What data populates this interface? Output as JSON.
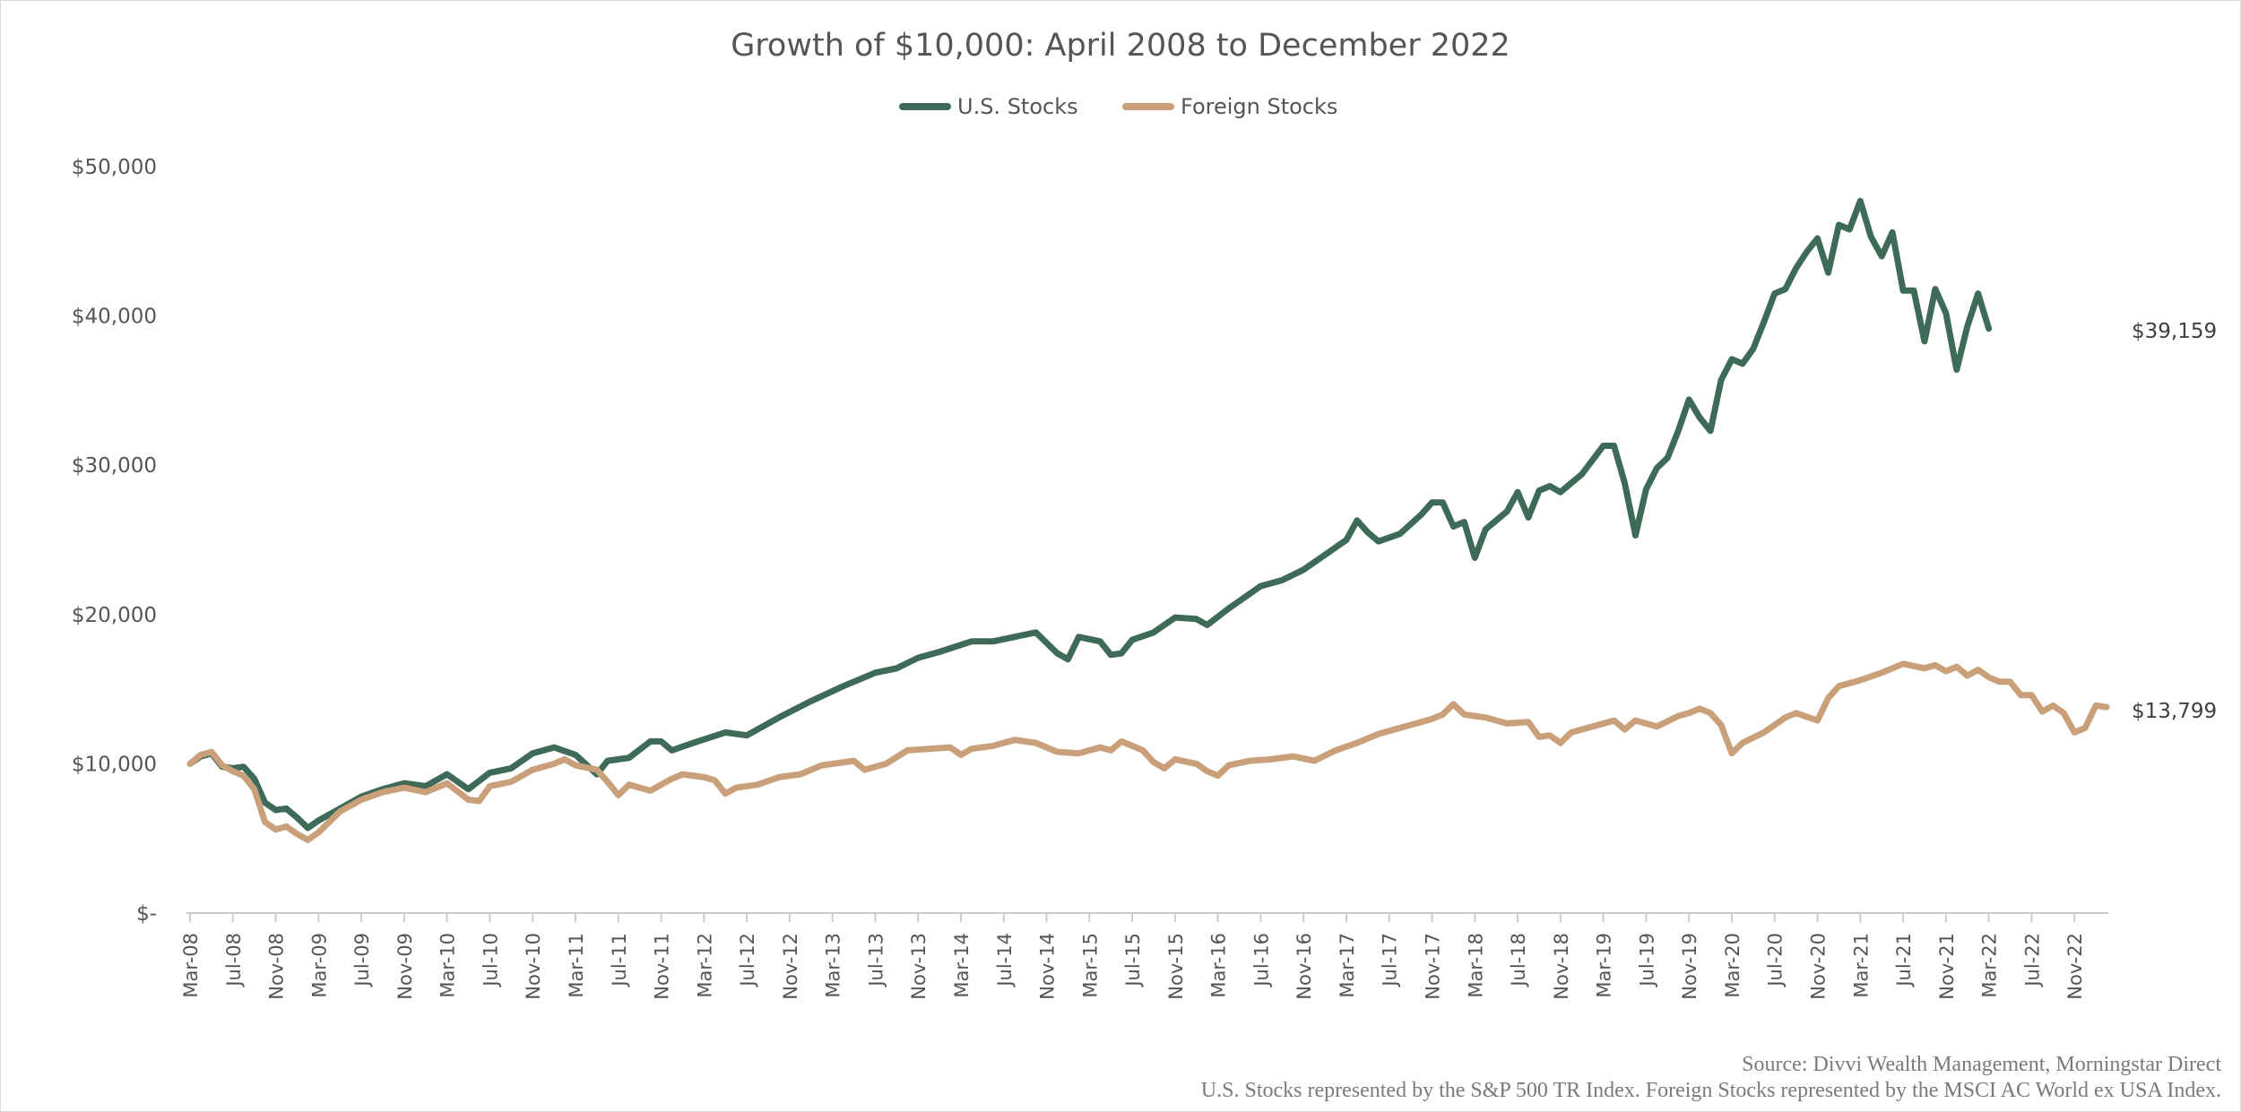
{
  "chart_data": {
    "type": "line",
    "title": "Growth of $10,000: April 2008 to December 2022",
    "xlabel": "",
    "ylabel": "",
    "ylim": [
      0,
      50000
    ],
    "yticks": [
      0,
      10000,
      20000,
      30000,
      40000,
      50000
    ],
    "ytick_labels": [
      "$-",
      "$10,000",
      "$20,000",
      "$30,000",
      "$40,000",
      "$50,000"
    ],
    "x_tick_labels": [
      "Mar-08",
      "Jul-08",
      "Nov-08",
      "Mar-09",
      "Jul-09",
      "Nov-09",
      "Mar-10",
      "Jul-10",
      "Nov-10",
      "Mar-11",
      "Jul-11",
      "Nov-11",
      "Mar-12",
      "Jul-12",
      "Nov-12",
      "Mar-13",
      "Jul-13",
      "Nov-13",
      "Mar-14",
      "Jul-14",
      "Nov-14",
      "Mar-15",
      "Jul-15",
      "Nov-15",
      "Mar-16",
      "Jul-16",
      "Nov-16",
      "Mar-17",
      "Jul-17",
      "Nov-17",
      "Mar-18",
      "Jul-18",
      "Nov-18",
      "Mar-19",
      "Jul-19",
      "Nov-19",
      "Mar-20",
      "Jul-20",
      "Nov-20",
      "Mar-21",
      "Jul-21",
      "Nov-21",
      "Mar-22",
      "Jul-22",
      "Nov-22"
    ],
    "legend_position": "top-center",
    "grid": false,
    "series": [
      {
        "name": "U.S. Stocks",
        "color": "#3d6b57",
        "end_label": "$39,159",
        "anchors": [
          [
            0,
            10000
          ],
          [
            1,
            10500
          ],
          [
            2,
            10700
          ],
          [
            3,
            9800
          ],
          [
            4,
            9700
          ],
          [
            5,
            9800
          ],
          [
            6,
            9000
          ],
          [
            7,
            7400
          ],
          [
            8,
            6900
          ],
          [
            9,
            7000
          ],
          [
            10,
            6400
          ],
          [
            11,
            5700
          ],
          [
            12,
            6200
          ],
          [
            14,
            7000
          ],
          [
            16,
            7800
          ],
          [
            18,
            8300
          ],
          [
            20,
            8700
          ],
          [
            22,
            8500
          ],
          [
            24,
            9300
          ],
          [
            26,
            8300
          ],
          [
            28,
            9400
          ],
          [
            30,
            9700
          ],
          [
            32,
            10700
          ],
          [
            34,
            11100
          ],
          [
            36,
            10600
          ],
          [
            38,
            9300
          ],
          [
            39,
            10200
          ],
          [
            41,
            10400
          ],
          [
            43,
            11500
          ],
          [
            44,
            11500
          ],
          [
            45,
            10900
          ],
          [
            47,
            11400
          ],
          [
            50,
            12100
          ],
          [
            52,
            11900
          ],
          [
            55,
            13100
          ],
          [
            58,
            14200
          ],
          [
            61,
            15200
          ],
          [
            64,
            16100
          ],
          [
            66,
            16400
          ],
          [
            68,
            17100
          ],
          [
            70,
            17500
          ],
          [
            73,
            18200
          ],
          [
            75,
            18200
          ],
          [
            77,
            18500
          ],
          [
            79,
            18800
          ],
          [
            81,
            17400
          ],
          [
            82,
            17000
          ],
          [
            83,
            18500
          ],
          [
            85,
            18200
          ],
          [
            86,
            17300
          ],
          [
            87,
            17400
          ],
          [
            88,
            18300
          ],
          [
            90,
            18800
          ],
          [
            92,
            19800
          ],
          [
            94,
            19700
          ],
          [
            95,
            19300
          ],
          [
            97,
            20400
          ],
          [
            100,
            21900
          ],
          [
            102,
            22300
          ],
          [
            104,
            23000
          ],
          [
            106,
            24000
          ],
          [
            108,
            25000
          ],
          [
            109,
            26300
          ],
          [
            110,
            25500
          ],
          [
            111,
            24900
          ],
          [
            113,
            25400
          ],
          [
            115,
            26700
          ],
          [
            116,
            27500
          ],
          [
            117,
            27500
          ],
          [
            118,
            25900
          ],
          [
            119,
            26200
          ],
          [
            120,
            23800
          ],
          [
            121,
            25700
          ],
          [
            123,
            26900
          ],
          [
            124,
            28200
          ],
          [
            125,
            26500
          ],
          [
            126,
            28300
          ],
          [
            127,
            28600
          ],
          [
            128,
            28200
          ],
          [
            130,
            29400
          ],
          [
            132,
            31300
          ],
          [
            133,
            31300
          ],
          [
            134,
            28800
          ],
          [
            135,
            25300
          ],
          [
            136,
            28400
          ],
          [
            137,
            29800
          ],
          [
            138,
            30500
          ],
          [
            139,
            32300
          ],
          [
            140,
            34400
          ],
          [
            141,
            33200
          ],
          [
            142,
            32300
          ],
          [
            143,
            35700
          ],
          [
            144,
            37100
          ],
          [
            145,
            36800
          ],
          [
            146,
            37800
          ],
          [
            147,
            39600
          ],
          [
            148,
            41500
          ],
          [
            149,
            41800
          ],
          [
            150,
            43200
          ],
          [
            151,
            44300
          ],
          [
            152,
            45200
          ],
          [
            153,
            42900
          ],
          [
            154,
            46100
          ],
          [
            155,
            45800
          ],
          [
            156,
            47700
          ],
          [
            157,
            45300
          ],
          [
            158,
            44000
          ],
          [
            159,
            45600
          ],
          [
            160,
            41700
          ],
          [
            161,
            41700
          ],
          [
            162,
            38300
          ],
          [
            163,
            41800
          ],
          [
            164,
            40200
          ],
          [
            165,
            36400
          ],
          [
            166,
            39300
          ],
          [
            167,
            41500
          ],
          [
            168,
            39159
          ]
        ]
      },
      {
        "name": "Foreign Stocks",
        "color": "#c9a07a",
        "end_label": "$13,799",
        "anchors": [
          [
            0,
            10000
          ],
          [
            1,
            10600
          ],
          [
            2,
            10800
          ],
          [
            3,
            9900
          ],
          [
            4,
            9500
          ],
          [
            5,
            9200
          ],
          [
            6,
            8300
          ],
          [
            7,
            6100
          ],
          [
            8,
            5600
          ],
          [
            9,
            5800
          ],
          [
            10,
            5300
          ],
          [
            11,
            4900
          ],
          [
            12,
            5400
          ],
          [
            14,
            6800
          ],
          [
            16,
            7600
          ],
          [
            18,
            8100
          ],
          [
            20,
            8400
          ],
          [
            22,
            8100
          ],
          [
            24,
            8700
          ],
          [
            26,
            7600
          ],
          [
            27,
            7500
          ],
          [
            28,
            8500
          ],
          [
            30,
            8800
          ],
          [
            32,
            9600
          ],
          [
            34,
            10000
          ],
          [
            35,
            10300
          ],
          [
            36,
            9900
          ],
          [
            38,
            9600
          ],
          [
            39,
            8800
          ],
          [
            40,
            7900
          ],
          [
            41,
            8600
          ],
          [
            43,
            8200
          ],
          [
            45,
            9000
          ],
          [
            46,
            9300
          ],
          [
            48,
            9100
          ],
          [
            49,
            8900
          ],
          [
            50,
            8000
          ],
          [
            51,
            8400
          ],
          [
            53,
            8600
          ],
          [
            55,
            9100
          ],
          [
            57,
            9300
          ],
          [
            59,
            9900
          ],
          [
            62,
            10200
          ],
          [
            63,
            9600
          ],
          [
            65,
            10000
          ],
          [
            67,
            10900
          ],
          [
            69,
            11000
          ],
          [
            71,
            11100
          ],
          [
            72,
            10600
          ],
          [
            73,
            11000
          ],
          [
            75,
            11200
          ],
          [
            77,
            11600
          ],
          [
            79,
            11400
          ],
          [
            81,
            10800
          ],
          [
            83,
            10700
          ],
          [
            85,
            11100
          ],
          [
            86,
            10900
          ],
          [
            87,
            11500
          ],
          [
            89,
            10900
          ],
          [
            90,
            10100
          ],
          [
            91,
            9700
          ],
          [
            92,
            10300
          ],
          [
            94,
            10000
          ],
          [
            95,
            9500
          ],
          [
            96,
            9200
          ],
          [
            97,
            9900
          ],
          [
            99,
            10200
          ],
          [
            101,
            10300
          ],
          [
            103,
            10500
          ],
          [
            105,
            10200
          ],
          [
            107,
            10900
          ],
          [
            109,
            11400
          ],
          [
            111,
            12000
          ],
          [
            113,
            12400
          ],
          [
            115,
            12800
          ],
          [
            116,
            13000
          ],
          [
            117,
            13300
          ],
          [
            118,
            14000
          ],
          [
            119,
            13300
          ],
          [
            121,
            13100
          ],
          [
            123,
            12700
          ],
          [
            125,
            12800
          ],
          [
            126,
            11800
          ],
          [
            127,
            11900
          ],
          [
            128,
            11400
          ],
          [
            129,
            12100
          ],
          [
            131,
            12500
          ],
          [
            133,
            12900
          ],
          [
            134,
            12300
          ],
          [
            135,
            12900
          ],
          [
            137,
            12500
          ],
          [
            139,
            13200
          ],
          [
            140,
            13400
          ],
          [
            141,
            13700
          ],
          [
            142,
            13400
          ],
          [
            143,
            12600
          ],
          [
            144,
            10700
          ],
          [
            145,
            11400
          ],
          [
            147,
            12100
          ],
          [
            149,
            13100
          ],
          [
            150,
            13400
          ],
          [
            152,
            12900
          ],
          [
            153,
            14400
          ],
          [
            154,
            15200
          ],
          [
            156,
            15600
          ],
          [
            158,
            16100
          ],
          [
            160,
            16700
          ],
          [
            162,
            16400
          ],
          [
            163,
            16600
          ],
          [
            164,
            16200
          ],
          [
            165,
            16500
          ],
          [
            166,
            15900
          ],
          [
            167,
            16300
          ],
          [
            168,
            15800
          ],
          [
            169,
            15500
          ],
          [
            170,
            15500
          ],
          [
            171,
            14600
          ],
          [
            172,
            14600
          ],
          [
            173,
            13500
          ],
          [
            174,
            13900
          ],
          [
            175,
            13400
          ],
          [
            176,
            12100
          ],
          [
            177,
            12400
          ],
          [
            178,
            13900
          ],
          [
            179,
            13799
          ]
        ]
      }
    ],
    "source_lines": [
      "Source: Divvi Wealth Management, Morningstar Direct",
      "U.S. Stocks represented by the S&P 500 TR Index. Foreign Stocks represented by the MSCI AC World ex USA Index."
    ]
  }
}
